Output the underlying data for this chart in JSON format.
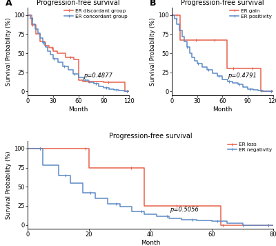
{
  "title": "Progression-free survival",
  "orange_color": "#E8604C",
  "blue_color": "#5B8AC5",
  "background": "#FFFFFF",
  "panelA": {
    "label": "A",
    "xlabel": "Month",
    "ylabel": "Survival Probability (%)",
    "xlim": [
      0,
      120
    ],
    "ylim": [
      -5,
      110
    ],
    "xticks": [
      0,
      30,
      60,
      90,
      120
    ],
    "yticks": [
      0,
      25,
      50,
      75,
      100
    ],
    "pvalue": "p=0.4877",
    "pvalue_x": 0.55,
    "pvalue_y": 0.22,
    "legend1": "ER discordant group",
    "legend2": "ER concordant group",
    "curve1_x": [
      0,
      5,
      10,
      15,
      20,
      25,
      30,
      35,
      45,
      55,
      60,
      65,
      90,
      95,
      100,
      115,
      120
    ],
    "curve1_y": [
      100,
      87,
      75,
      65,
      60,
      57,
      53,
      50,
      45,
      42,
      15,
      13,
      12,
      12,
      12,
      0,
      0
    ],
    "curve2_x": [
      0,
      3,
      6,
      9,
      12,
      15,
      18,
      21,
      24,
      27,
      30,
      36,
      42,
      48,
      54,
      60,
      66,
      72,
      78,
      84,
      90,
      96,
      102,
      108,
      114,
      120
    ],
    "curve2_y": [
      100,
      95,
      88,
      82,
      76,
      70,
      64,
      58,
      53,
      48,
      43,
      38,
      33,
      28,
      23,
      18,
      15,
      12,
      10,
      7,
      5,
      3,
      2,
      1,
      0,
      0
    ]
  },
  "panelB": {
    "label": "B",
    "xlabel": "Month",
    "ylabel": "Survival Probability (%)",
    "xlim": [
      0,
      120
    ],
    "ylim": [
      -5,
      110
    ],
    "xticks": [
      0,
      30,
      60,
      90,
      120
    ],
    "yticks": [
      0,
      25,
      50,
      75,
      100
    ],
    "pvalue": "p=0.4791",
    "pvalue_x": 0.55,
    "pvalue_y": 0.22,
    "legend1": "ER gain",
    "legend2": "ER positivity",
    "curve1_x": [
      0,
      5,
      10,
      60,
      65,
      100,
      105,
      120
    ],
    "curve1_y": [
      100,
      100,
      67,
      67,
      30,
      30,
      0,
      0
    ],
    "curve2_x": [
      0,
      3,
      6,
      9,
      12,
      15,
      18,
      21,
      24,
      27,
      30,
      36,
      42,
      48,
      54,
      60,
      66,
      72,
      78,
      84,
      90,
      96,
      102,
      108,
      112,
      120
    ],
    "curve2_y": [
      100,
      95,
      88,
      80,
      72,
      65,
      58,
      50,
      45,
      40,
      36,
      32,
      28,
      24,
      20,
      16,
      13,
      11,
      9,
      6,
      3,
      2,
      1,
      0,
      0,
      0
    ]
  },
  "panelC": {
    "label": "C",
    "xlabel": "Month",
    "ylabel": "Survival Probability (%)",
    "xlim": [
      0,
      80
    ],
    "ylim": [
      -5,
      110
    ],
    "xticks": [
      0,
      20,
      40,
      60,
      80
    ],
    "yticks": [
      0,
      25,
      50,
      75,
      100
    ],
    "pvalue": "p=0.5056",
    "pvalue_x": 0.58,
    "pvalue_y": 0.22,
    "legend1": "ER loss",
    "legend2": "ER negativity",
    "curve1_x": [
      0,
      18,
      20,
      35,
      38,
      60,
      63,
      80
    ],
    "curve1_y": [
      100,
      100,
      75,
      75,
      25,
      25,
      0,
      0
    ],
    "curve2_x": [
      0,
      5,
      10,
      14,
      18,
      22,
      26,
      30,
      34,
      38,
      42,
      46,
      50,
      55,
      60,
      65,
      70,
      75,
      80
    ],
    "curve2_y": [
      100,
      78,
      65,
      55,
      42,
      35,
      28,
      24,
      18,
      14,
      11,
      9,
      7,
      6,
      5,
      2,
      0,
      0,
      0
    ]
  }
}
